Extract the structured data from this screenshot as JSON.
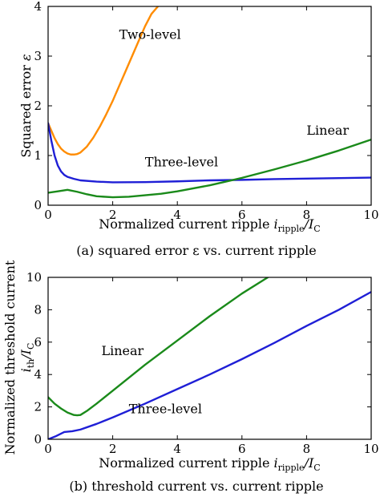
{
  "chart_data": [
    {
      "type": "line",
      "caption": "(a) squared error ε vs. current ripple",
      "xlabel": {
        "main": "Normalized current ripple ",
        "var": "i",
        "var_sub": "ripple",
        "div": "/",
        "den": "I",
        "den_sub": "C"
      },
      "ylabel": {
        "main": "Squared error ",
        "var": "ε"
      },
      "xlim": [
        0,
        10
      ],
      "ylim": [
        0,
        4
      ],
      "xticks": [
        0,
        2,
        4,
        6,
        8,
        10
      ],
      "yticks": [
        0,
        1,
        2,
        3,
        4
      ],
      "grid": false,
      "series": [
        {
          "name": "Two-level",
          "color": "#ff8c00",
          "x": [
            0,
            0.1,
            0.2,
            0.3,
            0.4,
            0.5,
            0.6,
            0.7,
            0.8,
            0.9,
            1.0,
            1.2,
            1.4,
            1.6,
            1.8,
            2.0,
            2.2,
            2.4,
            2.6,
            2.8,
            3.0,
            3.2,
            3.4
          ],
          "y": [
            1.65,
            1.5,
            1.35,
            1.23,
            1.14,
            1.08,
            1.04,
            1.02,
            1.02,
            1.03,
            1.06,
            1.18,
            1.36,
            1.58,
            1.83,
            2.1,
            2.4,
            2.7,
            3.0,
            3.3,
            3.6,
            3.85,
            4.0
          ]
        },
        {
          "name": "Three-level",
          "color": "#1f1fd6",
          "x": [
            0,
            0.1,
            0.2,
            0.3,
            0.4,
            0.5,
            0.6,
            0.8,
            1.0,
            1.5,
            2.0,
            3.0,
            4.0,
            5.0,
            6.0,
            7.0,
            8.0,
            9.0,
            10.0
          ],
          "y": [
            1.65,
            1.3,
            1.0,
            0.8,
            0.68,
            0.61,
            0.57,
            0.53,
            0.5,
            0.475,
            0.46,
            0.465,
            0.48,
            0.5,
            0.51,
            0.525,
            0.535,
            0.545,
            0.555
          ]
        },
        {
          "name": "Linear",
          "color": "#1a8a1a",
          "x": [
            0,
            0.3,
            0.6,
            0.9,
            1.2,
            1.5,
            2.0,
            2.5,
            3.0,
            3.5,
            4.0,
            5.0,
            6.0,
            7.0,
            8.0,
            9.0,
            10.0
          ],
          "y": [
            0.25,
            0.28,
            0.31,
            0.27,
            0.22,
            0.18,
            0.16,
            0.17,
            0.2,
            0.23,
            0.28,
            0.4,
            0.55,
            0.72,
            0.9,
            1.1,
            1.32
          ]
        }
      ],
      "annotations": [
        {
          "text": "Two-level",
          "x": 2.2,
          "y": 3.35
        },
        {
          "text": "Linear",
          "x": 8.0,
          "y": 1.42
        },
        {
          "text": "Three-level",
          "x": 3.0,
          "y": 0.78
        }
      ]
    },
    {
      "type": "line",
      "caption": "(b) threshold current vs. current ripple",
      "xlabel": {
        "main": "Normalized current ripple ",
        "var": "i",
        "var_sub": "ripple",
        "div": "/",
        "den": "I",
        "den_sub": "C"
      },
      "ylabel": {
        "line1": "Normalized threshold current",
        "var": "i",
        "var_sub": "th",
        "div": "/",
        "den": "I",
        "den_sub": "C"
      },
      "xlim": [
        0,
        10
      ],
      "ylim": [
        0,
        10
      ],
      "xticks": [
        0,
        2,
        4,
        6,
        8,
        10
      ],
      "yticks": [
        0,
        2,
        4,
        6,
        8,
        10
      ],
      "grid": false,
      "series": [
        {
          "name": "Linear",
          "color": "#1a8a1a",
          "x": [
            0,
            0.2,
            0.4,
            0.6,
            0.8,
            0.9,
            1.0,
            1.2,
            1.5,
            2.0,
            3.0,
            4.0,
            5.0,
            6.0,
            6.8
          ],
          "y": [
            2.6,
            2.2,
            1.9,
            1.65,
            1.5,
            1.48,
            1.5,
            1.75,
            2.2,
            3.0,
            4.6,
            6.1,
            7.6,
            9.0,
            10.0
          ]
        },
        {
          "name": "Three-level",
          "color": "#1f1fd6",
          "x": [
            0,
            0.25,
            0.5,
            0.75,
            1.0,
            1.5,
            2.0,
            3.0,
            4.0,
            5.0,
            6.0,
            7.0,
            8.0,
            9.0,
            10.0
          ],
          "y": [
            0.0,
            0.2,
            0.45,
            0.5,
            0.6,
            0.95,
            1.35,
            2.2,
            3.1,
            4.0,
            4.95,
            5.95,
            7.0,
            8.0,
            9.1
          ]
        }
      ],
      "annotations": [
        {
          "text": "Linear",
          "x": 1.65,
          "y": 5.2
        },
        {
          "text": "Three-level",
          "x": 2.5,
          "y": 1.6
        }
      ]
    }
  ]
}
